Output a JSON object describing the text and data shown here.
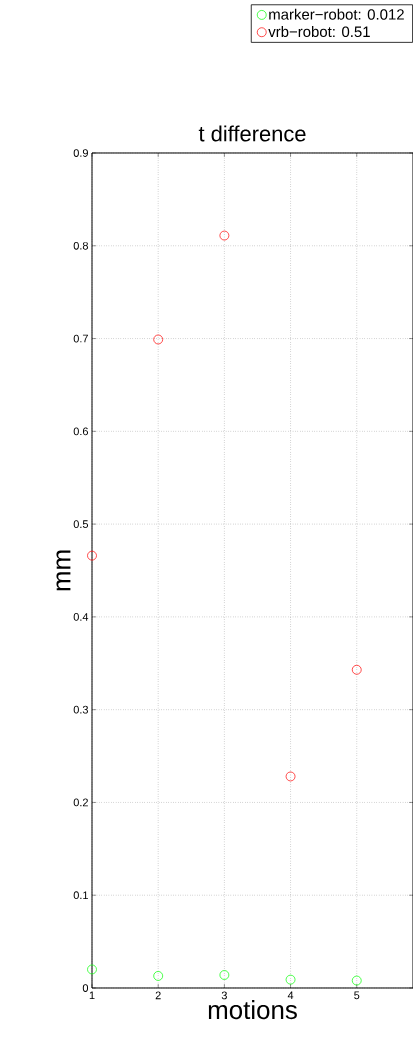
{
  "chart_data": {
    "type": "scatter",
    "title": "t difference",
    "xlabel": "motions",
    "ylabel": "mm",
    "x": [
      1,
      2,
      3,
      4,
      5
    ],
    "series": [
      {
        "name": "marker−robot: 0.012",
        "color": "#00ff00",
        "values": [
          0.02,
          0.013,
          0.014,
          0.009,
          0.008
        ]
      },
      {
        "name": "vrb−robot: 0.51",
        "color": "#ff0000",
        "values": [
          0.466,
          0.699,
          0.811,
          0.228,
          0.343
        ]
      }
    ],
    "xlim": [
      1,
      5.85
    ],
    "xticks": [
      1,
      2,
      3,
      4,
      5
    ],
    "ylim": [
      0,
      0.9
    ],
    "yticks": [
      0,
      0.1,
      0.2,
      0.3,
      0.4,
      0.5,
      0.6,
      0.7,
      0.8,
      0.9
    ],
    "grid": true,
    "legend": "top right",
    "marker": "circle"
  }
}
